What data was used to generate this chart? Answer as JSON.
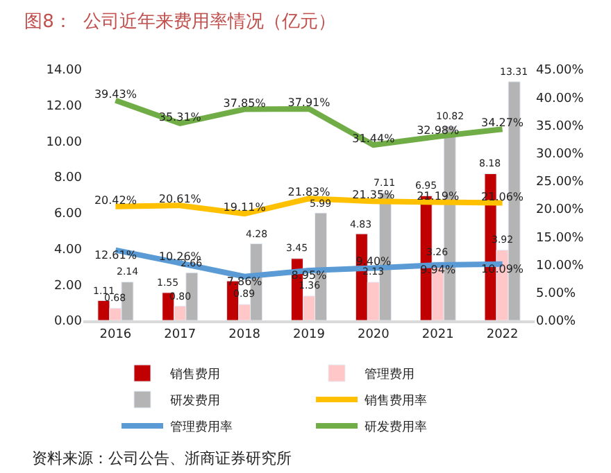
{
  "chart_data": {
    "type": "bar",
    "title": "图8：  公司近年来费用率情况（亿元）",
    "categories": [
      "2016",
      "2017",
      "2018",
      "2019",
      "2020",
      "2021",
      "2022"
    ],
    "series": [
      {
        "name": "销售费用",
        "color": "#c00000",
        "values": [
          1.11,
          1.55,
          2.2,
          3.45,
          4.83,
          6.95,
          8.18
        ],
        "value_labels": [
          "1.11",
          "1.55",
          null,
          "3.45",
          "4.83",
          "6.95",
          "8.18"
        ]
      },
      {
        "name": "管理费用",
        "color": "#ffc7c7",
        "values": [
          0.68,
          0.8,
          0.89,
          1.36,
          2.13,
          3.26,
          3.92
        ],
        "value_labels": [
          "0.68",
          "0.80",
          "0.89",
          "1.36",
          "2.13",
          "3.26",
          "3.92"
        ]
      },
      {
        "name": "研发费用",
        "color": "#b4b4b4",
        "values": [
          2.14,
          2.66,
          4.28,
          5.99,
          7.11,
          10.82,
          13.31
        ],
        "value_labels": [
          "2.14",
          "2.66",
          "4.28",
          "5.99",
          "7.11",
          "10.82",
          "13.31"
        ]
      },
      {
        "name": "销售费用率",
        "type": "line",
        "axis": "y2",
        "color": "#ffc000",
        "values": [
          20.42,
          20.61,
          19.11,
          21.83,
          21.35,
          21.19,
          21.06
        ],
        "value_labels": [
          "20.42%",
          "20.61%",
          "19.11%",
          "21.83%",
          "21.35%",
          "21.19%",
          "21.06%"
        ]
      },
      {
        "name": "管理费用率",
        "type": "line",
        "axis": "y2",
        "color": "#5b9bd5",
        "values": [
          12.61,
          10.26,
          7.86,
          8.95,
          9.4,
          9.94,
          10.09
        ],
        "value_labels": [
          "12.61%",
          "10.26%",
          "7.86%",
          "8.95%",
          "9.40%",
          "9.94%",
          "10.09%"
        ]
      },
      {
        "name": "研发费用率",
        "type": "line",
        "axis": "y2",
        "color": "#70ad47",
        "values": [
          39.43,
          35.31,
          37.85,
          37.91,
          31.44,
          32.98,
          34.27
        ],
        "value_labels": [
          "39.43%",
          "35.31%",
          "37.85%",
          "37.91%",
          "31.44%",
          "32.98%",
          "34.27%"
        ]
      }
    ],
    "ylim": [
      0,
      14
    ],
    "yticks": [
      {
        "value": 0,
        "label": "0.00"
      },
      {
        "value": 2,
        "label": "2.00"
      },
      {
        "value": 4,
        "label": "4.00"
      },
      {
        "value": 6,
        "label": "6.00"
      },
      {
        "value": 8,
        "label": "8.00"
      },
      {
        "value": 10,
        "label": "10.00"
      },
      {
        "value": 12,
        "label": "12.00"
      },
      {
        "value": 14,
        "label": "14.00"
      }
    ],
    "y2lim": [
      0,
      45
    ],
    "y2ticks": [
      {
        "value": 0,
        "label": "0.00%"
      },
      {
        "value": 5,
        "label": "5.00%"
      },
      {
        "value": 10,
        "label": "10.00%"
      },
      {
        "value": 15,
        "label": "15.00%"
      },
      {
        "value": 20,
        "label": "20.00%"
      },
      {
        "value": 25,
        "label": "25.00%"
      },
      {
        "value": 30,
        "label": "30.00%"
      },
      {
        "value": 35,
        "label": "35.00%"
      },
      {
        "value": 40,
        "label": "40.00%"
      },
      {
        "value": 45,
        "label": "45.00%"
      }
    ],
    "legend": "bottom",
    "marker": "none",
    "line_style": "solid",
    "annotations": [
      "资料来源：公司公告、浙商证券研究所"
    ]
  }
}
